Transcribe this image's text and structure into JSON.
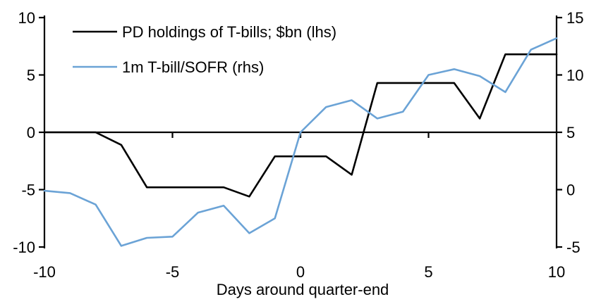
{
  "chart_data": {
    "type": "line",
    "title": "",
    "xlabel": "Days around quarter-end",
    "x": [
      -10,
      -9,
      -8,
      -7,
      -6,
      -5,
      -4,
      -3,
      -2,
      -1,
      0,
      1,
      2,
      3,
      4,
      5,
      6,
      7,
      8,
      9,
      10
    ],
    "x_ticks": [
      -10,
      -5,
      0,
      5,
      10
    ],
    "left_axis": {
      "ticks": [
        10,
        5,
        0,
        -5,
        -10
      ],
      "range": [
        -10,
        10
      ]
    },
    "right_axis": {
      "ticks": [
        15,
        10,
        5,
        0,
        -5
      ],
      "range": [
        -5,
        15
      ]
    },
    "grid": false,
    "legend_position": "top-left",
    "series": [
      {
        "name": "PD holdings of T-bills; $bn (lhs)",
        "axis": "left",
        "color": "#000000",
        "values": [
          0,
          0,
          0,
          -1.1,
          -4.8,
          -4.8,
          -4.8,
          -4.8,
          -5.6,
          -2.1,
          -2.1,
          -2.1,
          -3.7,
          4.3,
          4.3,
          4.3,
          4.3,
          1.2,
          6.8,
          6.8,
          6.8
        ]
      },
      {
        "name": "1m T-bill/SOFR (rhs)",
        "axis": "right",
        "color": "#6BA3D6",
        "values": [
          -0.1,
          -0.3,
          -1.3,
          -4.9,
          -4.2,
          -4.1,
          -2.0,
          -1.4,
          -3.8,
          -2.5,
          5.0,
          7.2,
          7.8,
          6.2,
          6.8,
          10.0,
          10.5,
          9.9,
          8.5,
          12.2,
          13.2
        ]
      }
    ],
    "axis_color": "#000000",
    "background": "#ffffff"
  }
}
